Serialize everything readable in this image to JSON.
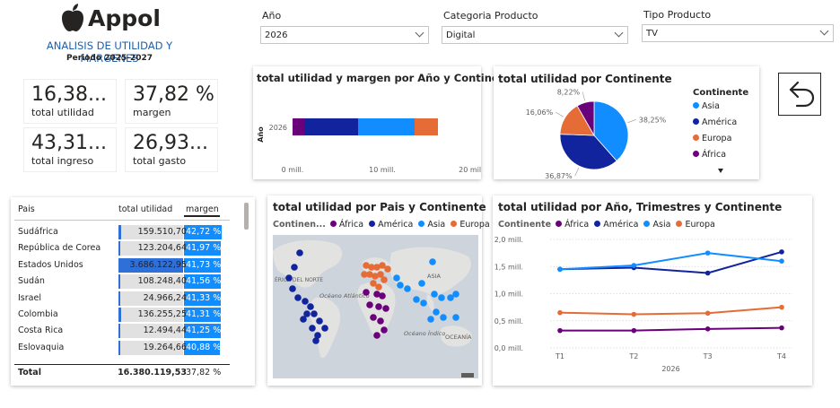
{
  "brand": {
    "name": "Appol",
    "logo_icon": "apple-logo-icon"
  },
  "report": {
    "title": "ANALISIS DE UTILIDAD Y MARGENES",
    "period": "Periodo 2025-2027"
  },
  "kpis": [
    {
      "value": "16,38...",
      "label": "total utilidad"
    },
    {
      "value": "37,82 %",
      "label": "margen"
    },
    {
      "value": "43,31...",
      "label": "total ingreso"
    },
    {
      "value": "26,93...",
      "label": "total gasto"
    }
  ],
  "slicers": [
    {
      "label": "Año",
      "value": "2026"
    },
    {
      "label": "Categoria Producto",
      "value": "Digital"
    },
    {
      "label": "Tipo Producto",
      "value": "TV"
    }
  ],
  "colors": {
    "africa": "#6b007b",
    "america": "#12239e",
    "asia": "#118dff",
    "europa": "#e66c37",
    "accent": "#1f5fa8"
  },
  "back_button": {
    "icon": "back-arrow-icon"
  },
  "bar_visual": {
    "title": "total utilidad y margen por Año y Continente",
    "y_axis_label": "Año",
    "chart_data": {
      "type": "bar",
      "orientation": "horizontal-stacked",
      "categories": [
        "2026"
      ],
      "series": [
        {
          "name": "África",
          "values": [
            1.3
          ]
        },
        {
          "name": "América",
          "values": [
            6.0
          ]
        },
        {
          "name": "Asia",
          "values": [
            6.3
          ]
        },
        {
          "name": "Europa",
          "values": [
            2.6
          ]
        }
      ],
      "x_ticks": [
        "0 mill.",
        "10 mill.",
        "20 mill."
      ],
      "xlim": [
        0,
        20
      ]
    }
  },
  "pie_visual": {
    "title": "total utilidad por Continente",
    "legend_title": "Continente",
    "chart_data": {
      "type": "pie",
      "labels": [
        "Asia",
        "América",
        "Europa",
        "África"
      ],
      "values": [
        38.25,
        36.87,
        16.06,
        8.22
      ],
      "data_labels": [
        "38,25%",
        "36,87%",
        "16,06%",
        "8,22%"
      ],
      "legend_placement": "right"
    }
  },
  "table": {
    "headers": [
      "Pais",
      "total utilidad",
      "margen"
    ],
    "rows": [
      {
        "pais": "Sudáfrica",
        "utilidad": "159.510,70",
        "margen": "42,72 %",
        "u": 159510.7,
        "m": 42.72
      },
      {
        "pais": "República de Corea",
        "utilidad": "123.204,64",
        "margen": "41,97 %",
        "u": 123204.64,
        "m": 41.97
      },
      {
        "pais": "Estados Unidos",
        "utilidad": "3.686.122,95",
        "margen": "41,73 %",
        "u": 3686122.95,
        "m": 41.73
      },
      {
        "pais": "Sudán",
        "utilidad": "108.248,40",
        "margen": "41,56 %",
        "u": 108248.4,
        "m": 41.56
      },
      {
        "pais": "Israel",
        "utilidad": "24.966,24",
        "margen": "41,33 %",
        "u": 24966.24,
        "m": 41.33
      },
      {
        "pais": "Colombia",
        "utilidad": "136.255,25",
        "margen": "41,31 %",
        "u": 136255.25,
        "m": 41.31
      },
      {
        "pais": "Costa Rica",
        "utilidad": "12.494,44",
        "margen": "41,25 %",
        "u": 12494.44,
        "m": 41.25
      },
      {
        "pais": "Eslovaquia",
        "utilidad": "19.264,66",
        "margen": "40,88 %",
        "u": 19264.66,
        "m": 40.88
      }
    ],
    "total": {
      "label": "Total",
      "utilidad": "16.380.119,53",
      "margen": "37,82 %"
    }
  },
  "map_visual": {
    "title": "total utilidad por Pais y Continente",
    "legend_title": "Continen...",
    "legend": [
      "África",
      "América",
      "Asia",
      "Europa"
    ],
    "map_labels": [
      "ÉRICA DEL NORTE",
      "Océano Atlántico",
      "ASIA",
      "Océano Índico",
      "OCEANÍA"
    ]
  },
  "line_visual": {
    "title": "total utilidad por Año, Trimestres y Continente",
    "legend_title": "Continente",
    "chart_data": {
      "type": "line",
      "x": [
        "T1",
        "T2",
        "T3",
        "T4"
      ],
      "x_group_label": "2026",
      "y_ticks": [
        "0,0 mill.",
        "0,5 mill.",
        "1,0 mill.",
        "1,5 mill.",
        "2,0 mill."
      ],
      "ylim": [
        0,
        2.0
      ],
      "series": [
        {
          "name": "África",
          "values": [
            0.32,
            0.32,
            0.35,
            0.37
          ]
        },
        {
          "name": "América",
          "values": [
            1.45,
            1.48,
            1.38,
            1.77
          ]
        },
        {
          "name": "Asia",
          "values": [
            1.45,
            1.52,
            1.75,
            1.6
          ]
        },
        {
          "name": "Europa",
          "values": [
            0.65,
            0.62,
            0.64,
            0.75
          ]
        }
      ]
    }
  }
}
